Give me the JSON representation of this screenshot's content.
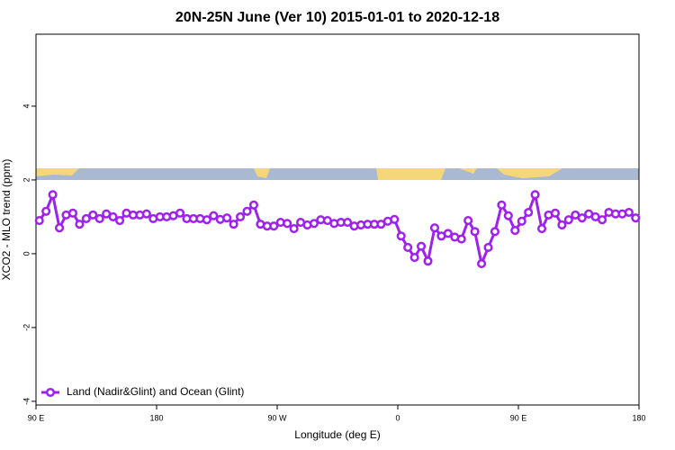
{
  "chart_data": {
    "type": "line",
    "title": "20N-25N June (Ver 10)   2015-01-01 to 2020-12-18",
    "x_label": "Longitude (deg E)",
    "y_label": "XCO2 - MLO trend (ppm)",
    "xlim": [
      90,
      540
    ],
    "xticks": [
      {
        "value": 90,
        "label": "90 E"
      },
      180,
      {
        "value": 270,
        "label": "90 W"
      },
      {
        "value": 360,
        "label": "0"
      },
      {
        "value": 450,
        "label": "90 E"
      },
      {
        "value": 540,
        "label": "180"
      }
    ],
    "ylim": [
      -4.1,
      5.95
    ],
    "yticks": [
      -4,
      -2,
      0,
      2,
      4
    ],
    "legend": "bottom-left",
    "x": [
      92.5,
      97.5,
      102.5,
      107.5,
      112.5,
      117.5,
      122.5,
      127.5,
      132.5,
      137.5,
      142.5,
      147.5,
      152.5,
      157.5,
      162.5,
      167.5,
      172.5,
      177.5,
      182.5,
      187.5,
      192.5,
      197.5,
      202.5,
      207.5,
      212.5,
      217.5,
      222.5,
      227.5,
      232.5,
      237.5,
      242.5,
      247.5,
      252.5,
      257.5,
      262.5,
      267.5,
      272.5,
      277.5,
      282.5,
      287.5,
      292.5,
      297.5,
      302.5,
      307.5,
      312.5,
      317.5,
      322.5,
      327.5,
      332.5,
      337.5,
      342.5,
      347.5,
      352.5,
      357.5,
      362.5,
      367.5,
      372.5,
      377.5,
      382.5,
      387.5,
      392.5,
      397.5,
      402.5,
      407.5,
      412.5,
      417.5,
      422.5,
      427.5,
      432.5,
      437.5,
      442.5,
      447.5,
      452.5,
      457.5,
      462.5,
      467.5,
      472.5,
      477.5,
      482.5,
      487.5,
      492.5,
      497.5,
      502.5,
      507.5,
      512.5,
      517.5,
      522.5,
      527.5,
      532.5,
      537.5
    ],
    "series": [
      {
        "name": "Land (Nadir&Glint) and Ocean (Glint)",
        "color": "#a020f0",
        "values": [
          0.9,
          1.15,
          1.6,
          0.7,
          1.05,
          1.1,
          0.8,
          0.95,
          1.05,
          0.95,
          1.08,
          1.0,
          0.9,
          1.1,
          1.05,
          1.05,
          1.08,
          0.95,
          1.0,
          1.0,
          1.03,
          1.1,
          0.95,
          0.95,
          0.95,
          0.92,
          1.03,
          0.93,
          0.97,
          0.8,
          1.0,
          1.15,
          1.32,
          0.8,
          0.75,
          0.75,
          0.85,
          0.82,
          0.68,
          0.85,
          0.78,
          0.82,
          0.92,
          0.9,
          0.82,
          0.85,
          0.85,
          0.75,
          0.78,
          0.8,
          0.8,
          0.8,
          0.88,
          0.93,
          0.48,
          0.17,
          -0.1,
          0.2,
          -0.2,
          0.7,
          0.48,
          0.55,
          0.45,
          0.4,
          0.9,
          0.6,
          -0.27,
          0.17,
          0.6,
          1.32,
          1.03,
          0.63,
          0.88,
          1.12,
          1.6,
          0.68,
          1.05,
          1.1,
          0.78,
          0.92,
          1.05,
          0.97,
          1.08,
          1.0,
          0.92,
          1.12,
          1.08,
          1.08,
          1.12,
          0.97
        ]
      }
    ]
  }
}
